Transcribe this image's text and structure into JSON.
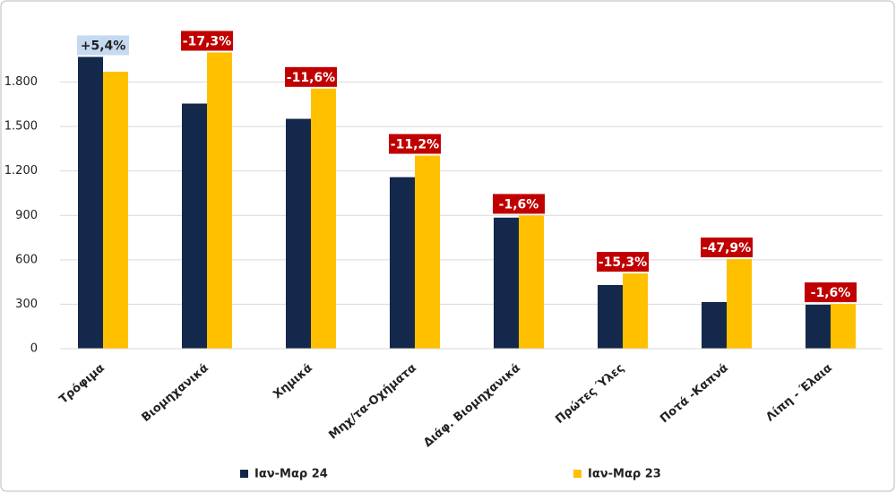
{
  "chart_data": {
    "type": "bar",
    "categories": [
      "Τρόφιμα",
      "Βιομηχανικά",
      "Χημικά",
      "Μηχ/τα-Οχήματα",
      "Διάφ. Βιομηχανικά",
      "Πρώτες Ύλες",
      "Ποτά -Καπνά",
      "Λίπη - Έλαια"
    ],
    "series": [
      {
        "name": "Ιαν-Μαρ 24",
        "color": "#14284b",
        "values": [
          1970,
          1655,
          1552,
          1158,
          885,
          430,
          315,
          297
        ]
      },
      {
        "name": "Ιαν-Μαρ 23",
        "color": "#ffc000",
        "values": [
          1870,
          2000,
          1756,
          1304,
          899,
          508,
          605,
          302
        ]
      }
    ],
    "changes": {
      "values": [
        5.4,
        -17.3,
        -11.6,
        -11.2,
        -1.6,
        -15.3,
        -47.9,
        -1.6
      ],
      "value_labels": [
        "+5,4%",
        "-17,3%",
        "-11,6%",
        "-11,2%",
        "-1,6%",
        "-15,3%",
        "-47,9%",
        "-1,6%"
      ]
    },
    "ylim": [
      0,
      2100
    ],
    "yticks": [
      0,
      300,
      600,
      900,
      {
        "value": 1200,
        "label": "1.200"
      },
      {
        "value": 1500,
        "label": "1.500"
      },
      {
        "value": 1800,
        "label": "1.800"
      }
    ],
    "grid": true,
    "legend": "bottom"
  }
}
